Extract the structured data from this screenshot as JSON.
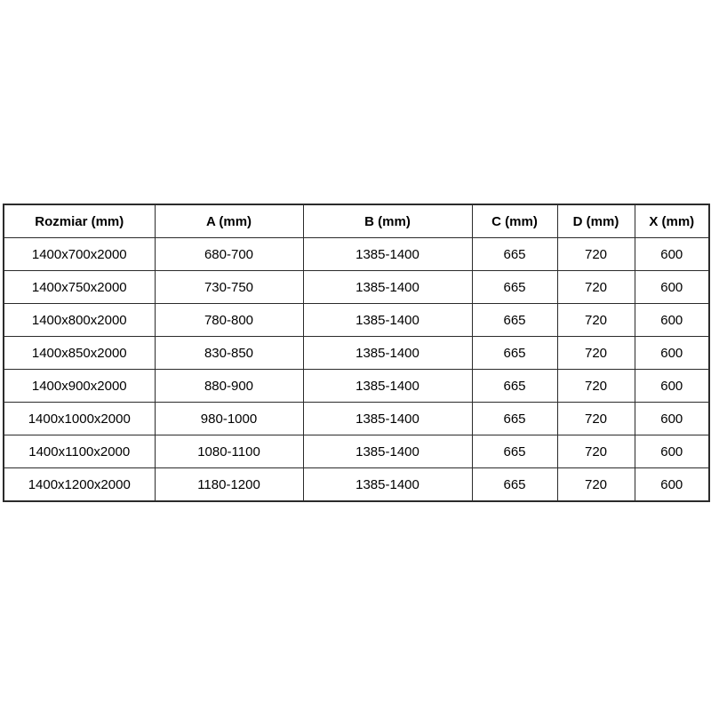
{
  "colors": {
    "background": "#ffffff",
    "border": "#2b2b2b",
    "text": "#000000"
  },
  "chart_data": {
    "type": "table",
    "title": "",
    "columns": [
      "Rozmiar (mm)",
      "A (mm)",
      "B (mm)",
      "C (mm)",
      "D (mm)",
      "X (mm)"
    ],
    "rows": [
      [
        "1400x700x2000",
        "680-700",
        "1385-1400",
        "665",
        "720",
        "600"
      ],
      [
        "1400x750x2000",
        "730-750",
        "1385-1400",
        "665",
        "720",
        "600"
      ],
      [
        "1400x800x2000",
        "780-800",
        "1385-1400",
        "665",
        "720",
        "600"
      ],
      [
        "1400x850x2000",
        "830-850",
        "1385-1400",
        "665",
        "720",
        "600"
      ],
      [
        "1400x900x2000",
        "880-900",
        "1385-1400",
        "665",
        "720",
        "600"
      ],
      [
        "1400x1000x2000",
        "980-1000",
        "1385-1400",
        "665",
        "720",
        "600"
      ],
      [
        "1400x1100x2000",
        "1080-1100",
        "1385-1400",
        "665",
        "720",
        "600"
      ],
      [
        "1400x1200x2000",
        "1180-1200",
        "1385-1400",
        "665",
        "720",
        "600"
      ]
    ]
  }
}
